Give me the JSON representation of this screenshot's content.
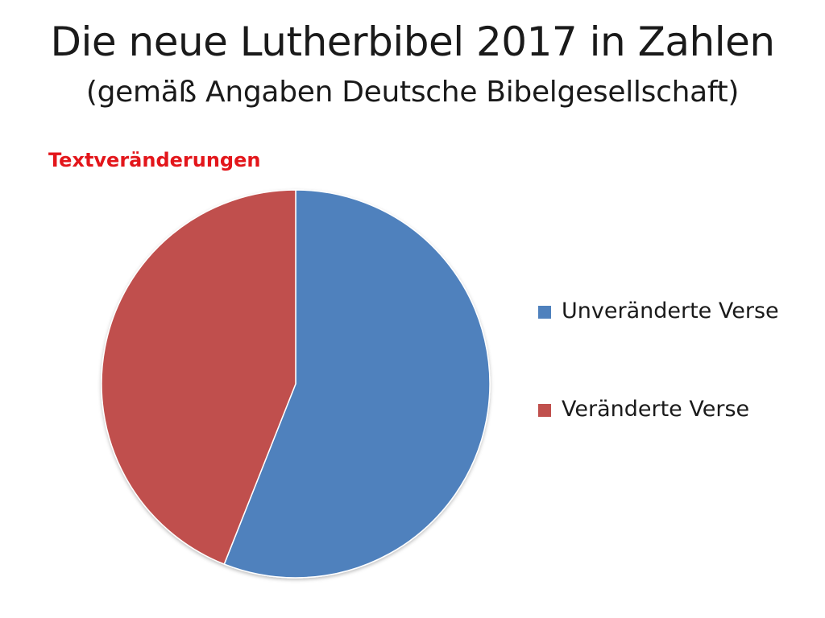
{
  "slide": {
    "title": "Die neue Lutherbibel 2017 in Zahlen",
    "subtitle": "(gemäß Angaben Deutsche Bibelgesellschaft)"
  },
  "colors": {
    "chart_title": "#e3161b",
    "unchanged": "#4f81bd",
    "changed": "#c0504d",
    "slice_border": "#ffffff"
  },
  "chart_data": {
    "type": "pie",
    "title": "Textveränderungen",
    "legend_position": "right",
    "slices": [
      {
        "name": "Unveränderte Verse",
        "value": 56,
        "color": "#4f81bd"
      },
      {
        "name": "Veränderte Verse",
        "value": 44,
        "color": "#c0504d"
      }
    ]
  }
}
